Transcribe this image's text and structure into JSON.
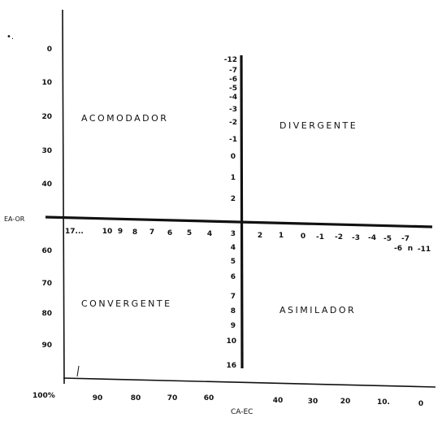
{
  "corner_mark": "•.",
  "left_axis_ticks": [
    "0",
    "10",
    "20",
    "30",
    "40",
    "60",
    "70",
    "80",
    "90"
  ],
  "left_axis_label": "EA-OR",
  "bottom_axis_ticks": [
    "100%",
    "90",
    "80",
    "70",
    "60",
    "40",
    "30",
    "20",
    "10.",
    "0"
  ],
  "bottom_axis_label": "CA-EC",
  "vertical_line_values": [
    "-12",
    "-7",
    "-6",
    "-5",
    "-4",
    "-3",
    "-2",
    "-1",
    "0",
    "1",
    "2",
    "3",
    "4",
    "5",
    "6",
    "7",
    "8",
    "9",
    "10",
    "16"
  ],
  "horizontal_line_values": [
    "17...",
    "10",
    "9",
    "8",
    "7",
    "6",
    "5",
    "4",
    "2",
    "1",
    "0",
    "-1",
    "-2",
    "-3",
    "-4",
    "-5",
    "-7",
    "-6",
    "n",
    "-11"
  ],
  "quadrants": {
    "top_left": "ACOMODADOR",
    "top_right": "DIVERGENTE",
    "bottom_left": "CONVERGENTE",
    "bottom_right": "ASIMILADOR"
  },
  "colors": {
    "ink": "#111111",
    "background": "#ffffff"
  }
}
